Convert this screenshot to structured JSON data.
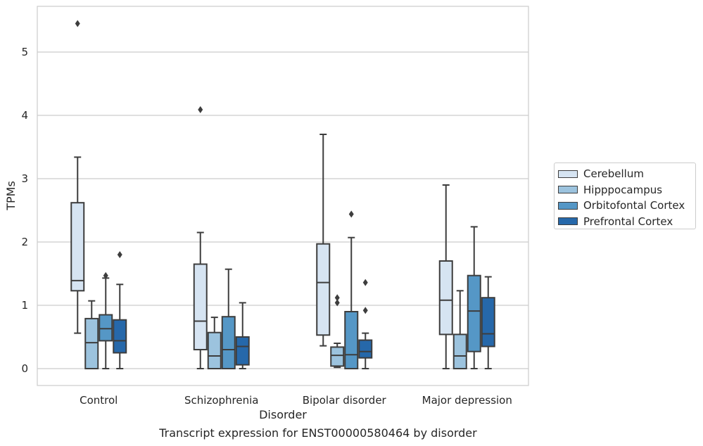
{
  "chart_data": {
    "type": "box",
    "xlabel": "Disorder",
    "ylabel": "TPMs",
    "caption": "Transcript expression for ENST00000580464 by disorder",
    "ylim": [
      -0.27,
      5.72
    ],
    "yticks": [
      0,
      1,
      2,
      3,
      4,
      5
    ],
    "grid": true,
    "legend_position": "right",
    "categories": [
      "Control",
      "Schizophrenia",
      "Bipolar disorder",
      "Major depression"
    ],
    "series": [
      {
        "name": "Cerebellum",
        "color": "#d6e4f2",
        "boxes": [
          {
            "whislo": 0.56,
            "q1": 1.23,
            "med": 1.39,
            "q3": 2.62,
            "whishi": 3.34,
            "fliers": [
              5.45
            ]
          },
          {
            "whislo": 0.0,
            "q1": 0.3,
            "med": 0.75,
            "q3": 1.65,
            "whishi": 2.15,
            "fliers": [
              4.09
            ]
          },
          {
            "whislo": 0.36,
            "q1": 0.53,
            "med": 1.36,
            "q3": 1.97,
            "whishi": 3.7,
            "fliers": []
          },
          {
            "whislo": 0.0,
            "q1": 0.54,
            "med": 1.08,
            "q3": 1.7,
            "whishi": 2.9,
            "fliers": []
          }
        ]
      },
      {
        "name": "Hipppocampus",
        "color": "#9cc3de",
        "boxes": [
          {
            "whislo": 0.0,
            "q1": 0.0,
            "med": 0.41,
            "q3": 0.79,
            "whishi": 1.07,
            "fliers": []
          },
          {
            "whislo": 0.0,
            "q1": 0.0,
            "med": 0.2,
            "q3": 0.57,
            "whishi": 0.81,
            "fliers": []
          },
          {
            "whislo": 0.02,
            "q1": 0.04,
            "med": 0.21,
            "q3": 0.34,
            "whishi": 0.4,
            "fliers": [
              1.04,
              1.12
            ]
          },
          {
            "whislo": 0.0,
            "q1": 0.0,
            "med": 0.2,
            "q3": 0.54,
            "whishi": 1.23,
            "fliers": []
          }
        ]
      },
      {
        "name": "Orbitofontal Cortex",
        "color": "#5597c6",
        "boxes": [
          {
            "whislo": 0.0,
            "q1": 0.44,
            "med": 0.63,
            "q3": 0.85,
            "whishi": 1.43,
            "fliers": [
              1.47
            ]
          },
          {
            "whislo": 0.0,
            "q1": 0.0,
            "med": 0.3,
            "q3": 0.82,
            "whishi": 1.57,
            "fliers": []
          },
          {
            "whislo": 0.0,
            "q1": 0.0,
            "med": 0.22,
            "q3": 0.9,
            "whishi": 2.07,
            "fliers": [
              2.44
            ]
          },
          {
            "whislo": 0.0,
            "q1": 0.27,
            "med": 0.91,
            "q3": 1.47,
            "whishi": 2.24,
            "fliers": []
          }
        ]
      },
      {
        "name": "Prefrontal Cortex",
        "color": "#2668aa",
        "boxes": [
          {
            "whislo": 0.0,
            "q1": 0.25,
            "med": 0.44,
            "q3": 0.77,
            "whishi": 1.33,
            "fliers": [
              1.8
            ]
          },
          {
            "whislo": 0.0,
            "q1": 0.06,
            "med": 0.35,
            "q3": 0.5,
            "whishi": 1.04,
            "fliers": []
          },
          {
            "whislo": 0.0,
            "q1": 0.17,
            "med": 0.27,
            "q3": 0.45,
            "whishi": 0.56,
            "fliers": [
              0.92,
              1.36
            ]
          },
          {
            "whislo": 0.0,
            "q1": 0.35,
            "med": 0.55,
            "q3": 1.12,
            "whishi": 1.45,
            "fliers": []
          }
        ]
      }
    ]
  }
}
